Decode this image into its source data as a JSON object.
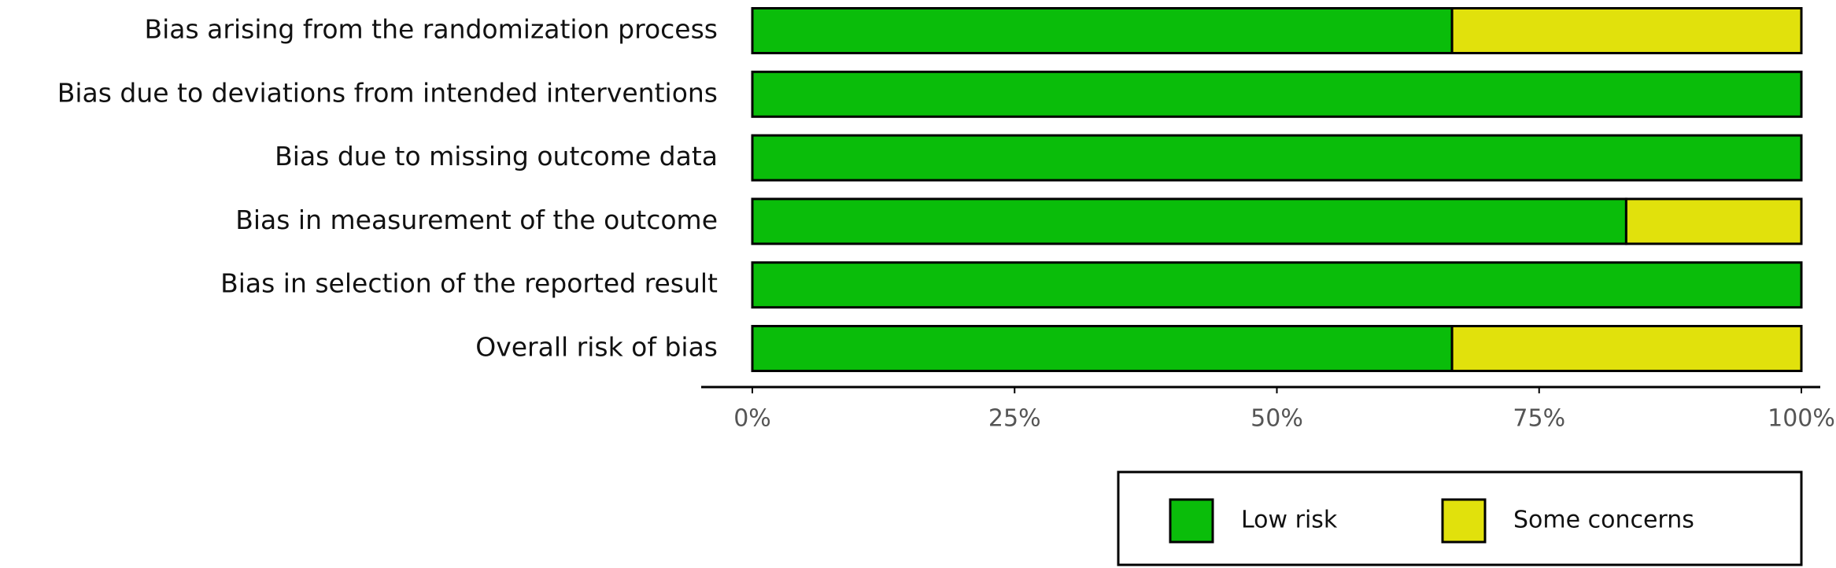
{
  "chart_data": {
    "type": "stacked-barh",
    "categories": [
      "Bias arising from the randomization process",
      "Bias due to deviations from intended interventions",
      "Bias due to missing outcome data",
      "Bias in measurement of the outcome",
      "Bias in selection of the reported result",
      "Overall risk of bias"
    ],
    "series": [
      {
        "name": "Low risk",
        "color": "#0abd0a",
        "values": [
          66.7,
          100,
          100,
          83.3,
          100,
          66.7
        ]
      },
      {
        "name": "Some concerns",
        "color": "#e1e10c",
        "values": [
          33.3,
          0,
          0,
          16.7,
          0,
          33.3
        ]
      }
    ],
    "xlim": [
      0,
      100
    ],
    "xticks": [
      {
        "value": 0,
        "label": "0%"
      },
      {
        "value": 25,
        "label": "25%"
      },
      {
        "value": 50,
        "label": "50%"
      },
      {
        "value": 75,
        "label": "75%"
      },
      {
        "value": 100,
        "label": "100%"
      }
    ],
    "legend": "bottom-right"
  }
}
